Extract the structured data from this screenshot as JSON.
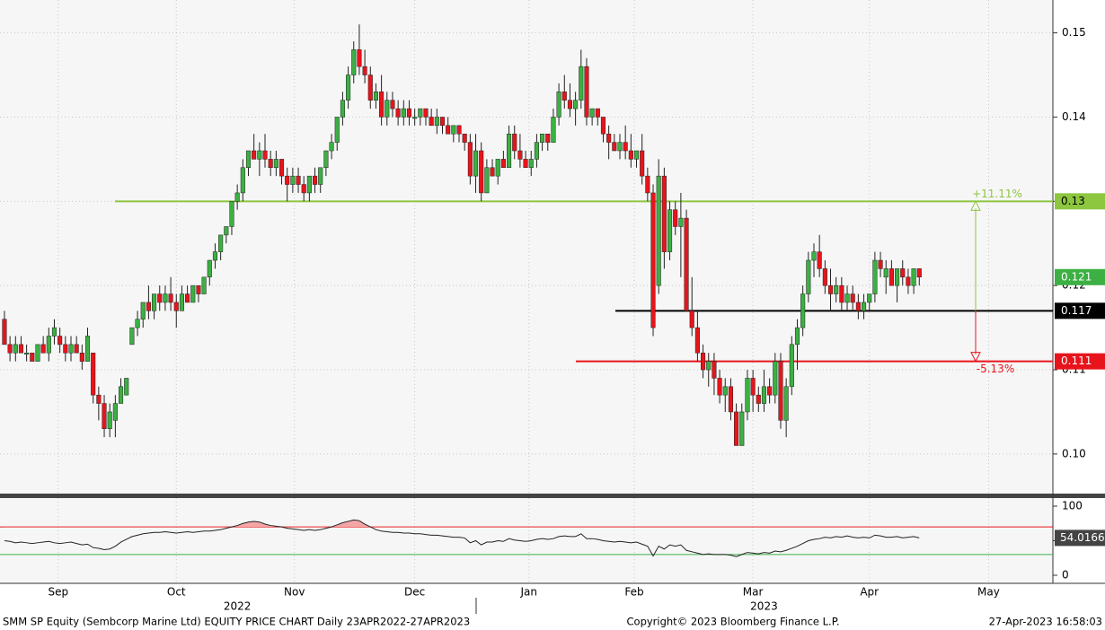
{
  "chart_data": {
    "type": "candlestick",
    "up_color": "#3cb043",
    "down_color": "#e8141b",
    "xlim": [
      -0.8,
      189.1
    ],
    "xticks": [
      {
        "value": 9.7,
        "label": "Sep"
      },
      {
        "value": 31,
        "label": "Oct"
      },
      {
        "value": 52.3,
        "label": "Nov"
      },
      {
        "value": 74,
        "label": "Dec"
      },
      {
        "value": 94.6,
        "label": "Jan"
      },
      {
        "value": 113.6,
        "label": "Feb"
      },
      {
        "value": 135,
        "label": "Mar"
      },
      {
        "value": 156,
        "label": "Apr"
      },
      {
        "value": 177.5,
        "label": "May"
      }
    ],
    "year_labels": [
      {
        "value": 42,
        "label": "2022"
      },
      {
        "value": 137,
        "label": "2023"
      }
    ],
    "ylim": [
      0.0953,
      0.1539
    ],
    "yticks": [
      {
        "value": 0.1,
        "label": "0.10"
      },
      0.11,
      0.12,
      0.13,
      0.14,
      0.15
    ],
    "grid": true,
    "ohlc": [
      [
        0.116,
        0.117,
        0.113,
        0.113
      ],
      [
        0.113,
        0.114,
        0.111,
        0.112
      ],
      [
        0.112,
        0.114,
        0.111,
        0.113
      ],
      [
        0.113,
        0.114,
        0.112,
        0.112
      ],
      [
        0.112,
        0.113,
        0.111,
        0.112
      ],
      [
        0.112,
        0.112,
        0.111,
        0.111
      ],
      [
        0.111,
        0.113,
        0.111,
        0.113
      ],
      [
        0.113,
        0.114,
        0.112,
        0.112
      ],
      [
        0.112,
        0.115,
        0.111,
        0.114
      ],
      [
        0.114,
        0.116,
        0.113,
        0.115
      ],
      [
        0.114,
        0.115,
        0.112,
        0.113
      ],
      [
        0.113,
        0.114,
        0.111,
        0.112
      ],
      [
        0.112,
        0.114,
        0.111,
        0.113
      ],
      [
        0.113,
        0.114,
        0.112,
        0.112
      ],
      [
        0.112,
        0.113,
        0.11,
        0.111
      ],
      [
        0.111,
        0.115,
        0.111,
        0.114
      ],
      [
        0.112,
        0.112,
        0.106,
        0.107
      ],
      [
        0.107,
        0.108,
        0.104,
        0.106
      ],
      [
        0.106,
        0.107,
        0.102,
        0.103
      ],
      [
        0.103,
        0.106,
        0.102,
        0.105
      ],
      [
        0.104,
        0.107,
        0.102,
        0.106
      ],
      [
        0.106,
        0.109,
        0.106,
        0.108
      ],
      [
        0.107,
        0.109,
        0.107,
        0.109
      ],
      [
        0.113,
        0.115,
        0.113,
        0.115
      ],
      [
        0.115,
        0.117,
        0.114,
        0.116
      ],
      [
        0.116,
        0.118,
        0.115,
        0.118
      ],
      [
        0.118,
        0.12,
        0.116,
        0.117
      ],
      [
        0.117,
        0.119,
        0.116,
        0.119
      ],
      [
        0.119,
        0.12,
        0.117,
        0.118
      ],
      [
        0.118,
        0.12,
        0.117,
        0.119
      ],
      [
        0.119,
        0.121,
        0.117,
        0.118
      ],
      [
        0.118,
        0.119,
        0.115,
        0.117
      ],
      [
        0.117,
        0.12,
        0.117,
        0.119
      ],
      [
        0.119,
        0.12,
        0.118,
        0.118
      ],
      [
        0.118,
        0.12,
        0.118,
        0.12
      ],
      [
        0.12,
        0.12,
        0.118,
        0.119
      ],
      [
        0.119,
        0.121,
        0.119,
        0.121
      ],
      [
        0.121,
        0.123,
        0.12,
        0.123
      ],
      [
        0.123,
        0.125,
        0.122,
        0.124
      ],
      [
        0.124,
        0.126,
        0.123,
        0.126
      ],
      [
        0.126,
        0.127,
        0.125,
        0.127
      ],
      [
        0.127,
        0.13,
        0.126,
        0.13
      ],
      [
        0.13,
        0.132,
        0.129,
        0.131
      ],
      [
        0.131,
        0.135,
        0.13,
        0.134
      ],
      [
        0.134,
        0.136,
        0.133,
        0.136
      ],
      [
        0.136,
        0.138,
        0.135,
        0.135
      ],
      [
        0.135,
        0.137,
        0.133,
        0.136
      ],
      [
        0.136,
        0.138,
        0.134,
        0.135
      ],
      [
        0.135,
        0.136,
        0.133,
        0.134
      ],
      [
        0.134,
        0.136,
        0.133,
        0.135
      ],
      [
        0.135,
        0.135,
        0.132,
        0.133
      ],
      [
        0.133,
        0.134,
        0.13,
        0.132
      ],
      [
        0.132,
        0.134,
        0.131,
        0.133
      ],
      [
        0.133,
        0.134,
        0.131,
        0.132
      ],
      [
        0.132,
        0.133,
        0.13,
        0.131
      ],
      [
        0.131,
        0.133,
        0.13,
        0.133
      ],
      [
        0.133,
        0.134,
        0.131,
        0.132
      ],
      [
        0.132,
        0.134,
        0.131,
        0.134
      ],
      [
        0.134,
        0.136,
        0.133,
        0.136
      ],
      [
        0.136,
        0.138,
        0.135,
        0.137
      ],
      [
        0.137,
        0.14,
        0.136,
        0.14
      ],
      [
        0.14,
        0.143,
        0.139,
        0.142
      ],
      [
        0.142,
        0.146,
        0.141,
        0.145
      ],
      [
        0.145,
        0.149,
        0.144,
        0.148
      ],
      [
        0.148,
        0.151,
        0.145,
        0.146
      ],
      [
        0.146,
        0.148,
        0.144,
        0.145
      ],
      [
        0.145,
        0.146,
        0.141,
        0.142
      ],
      [
        0.142,
        0.144,
        0.141,
        0.143
      ],
      [
        0.143,
        0.145,
        0.139,
        0.14
      ],
      [
        0.14,
        0.143,
        0.139,
        0.142
      ],
      [
        0.142,
        0.143,
        0.14,
        0.141
      ],
      [
        0.141,
        0.142,
        0.139,
        0.14
      ],
      [
        0.14,
        0.142,
        0.139,
        0.141
      ],
      [
        0.141,
        0.142,
        0.139,
        0.14
      ],
      [
        0.14,
        0.141,
        0.139,
        0.14
      ],
      [
        0.14,
        0.141,
        0.139,
        0.141
      ],
      [
        0.141,
        0.141,
        0.139,
        0.14
      ],
      [
        0.14,
        0.141,
        0.139,
        0.139
      ],
      [
        0.139,
        0.141,
        0.138,
        0.14
      ],
      [
        0.14,
        0.14,
        0.138,
        0.139
      ],
      [
        0.139,
        0.14,
        0.138,
        0.138
      ],
      [
        0.138,
        0.139,
        0.137,
        0.139
      ],
      [
        0.139,
        0.139,
        0.137,
        0.138
      ],
      [
        0.138,
        0.138,
        0.136,
        0.137
      ],
      [
        0.137,
        0.138,
        0.132,
        0.133
      ],
      [
        0.133,
        0.138,
        0.131,
        0.136
      ],
      [
        0.136,
        0.137,
        0.13,
        0.131
      ],
      [
        0.131,
        0.135,
        0.131,
        0.134
      ],
      [
        0.134,
        0.135,
        0.133,
        0.133
      ],
      [
        0.133,
        0.135,
        0.132,
        0.135
      ],
      [
        0.135,
        0.136,
        0.134,
        0.134
      ],
      [
        0.134,
        0.139,
        0.134,
        0.138
      ],
      [
        0.138,
        0.139,
        0.135,
        0.136
      ],
      [
        0.136,
        0.138,
        0.134,
        0.135
      ],
      [
        0.135,
        0.136,
        0.134,
        0.134
      ],
      [
        0.134,
        0.136,
        0.133,
        0.135
      ],
      [
        0.135,
        0.138,
        0.134,
        0.137
      ],
      [
        0.137,
        0.138,
        0.136,
        0.138
      ],
      [
        0.138,
        0.138,
        0.136,
        0.137
      ],
      [
        0.137,
        0.141,
        0.137,
        0.14
      ],
      [
        0.14,
        0.144,
        0.139,
        0.143
      ],
      [
        0.143,
        0.145,
        0.141,
        0.142
      ],
      [
        0.142,
        0.144,
        0.14,
        0.141
      ],
      [
        0.141,
        0.143,
        0.139,
        0.142
      ],
      [
        0.142,
        0.148,
        0.141,
        0.146
      ],
      [
        0.146,
        0.147,
        0.139,
        0.14
      ],
      [
        0.14,
        0.141,
        0.139,
        0.141
      ],
      [
        0.141,
        0.141,
        0.139,
        0.14
      ],
      [
        0.14,
        0.14,
        0.137,
        0.138
      ],
      [
        0.138,
        0.139,
        0.135,
        0.137
      ],
      [
        0.137,
        0.138,
        0.136,
        0.136
      ],
      [
        0.136,
        0.138,
        0.135,
        0.137
      ],
      [
        0.137,
        0.139,
        0.135,
        0.136
      ],
      [
        0.136,
        0.138,
        0.134,
        0.135
      ],
      [
        0.135,
        0.136,
        0.134,
        0.136
      ],
      [
        0.136,
        0.138,
        0.132,
        0.133
      ],
      [
        0.133,
        0.134,
        0.13,
        0.131
      ],
      [
        0.131,
        0.132,
        0.114,
        0.115
      ],
      [
        0.12,
        0.135,
        0.119,
        0.133
      ],
      [
        0.133,
        0.134,
        0.122,
        0.124
      ],
      [
        0.124,
        0.13,
        0.123,
        0.129
      ],
      [
        0.129,
        0.13,
        0.126,
        0.127
      ],
      [
        0.127,
        0.131,
        0.121,
        0.128
      ],
      [
        0.128,
        0.129,
        0.117,
        0.117
      ],
      [
        0.117,
        0.121,
        0.114,
        0.115
      ],
      [
        0.115,
        0.117,
        0.111,
        0.112
      ],
      [
        0.112,
        0.113,
        0.109,
        0.11
      ],
      [
        0.11,
        0.112,
        0.108,
        0.111
      ],
      [
        0.111,
        0.112,
        0.107,
        0.109
      ],
      [
        0.109,
        0.11,
        0.106,
        0.107
      ],
      [
        0.107,
        0.109,
        0.105,
        0.108
      ],
      [
        0.108,
        0.109,
        0.104,
        0.105
      ],
      [
        0.105,
        0.106,
        0.101,
        0.101
      ],
      [
        0.101,
        0.106,
        0.101,
        0.105
      ],
      [
        0.105,
        0.11,
        0.104,
        0.109
      ],
      [
        0.109,
        0.11,
        0.105,
        0.107
      ],
      [
        0.107,
        0.108,
        0.105,
        0.106
      ],
      [
        0.106,
        0.11,
        0.105,
        0.108
      ],
      [
        0.108,
        0.109,
        0.106,
        0.107
      ],
      [
        0.107,
        0.112,
        0.106,
        0.111
      ],
      [
        0.111,
        0.112,
        0.103,
        0.104
      ],
      [
        0.104,
        0.109,
        0.102,
        0.108
      ],
      [
        0.108,
        0.114,
        0.107,
        0.113
      ],
      [
        0.113,
        0.116,
        0.11,
        0.115
      ],
      [
        0.115,
        0.12,
        0.114,
        0.119
      ],
      [
        0.119,
        0.124,
        0.118,
        0.123
      ],
      [
        0.123,
        0.125,
        0.121,
        0.124
      ],
      [
        0.124,
        0.126,
        0.121,
        0.122
      ],
      [
        0.122,
        0.123,
        0.119,
        0.12
      ],
      [
        0.12,
        0.122,
        0.117,
        0.119
      ],
      [
        0.119,
        0.121,
        0.118,
        0.12
      ],
      [
        0.12,
        0.121,
        0.117,
        0.118
      ],
      [
        0.118,
        0.12,
        0.117,
        0.119
      ],
      [
        0.119,
        0.12,
        0.117,
        0.118
      ],
      [
        0.118,
        0.119,
        0.116,
        0.117
      ],
      [
        0.117,
        0.119,
        0.116,
        0.118
      ],
      [
        0.118,
        0.119,
        0.117,
        0.119
      ],
      [
        0.119,
        0.124,
        0.118,
        0.123
      ],
      [
        0.123,
        0.124,
        0.121,
        0.122
      ],
      [
        0.121,
        0.123,
        0.119,
        0.122
      ],
      [
        0.122,
        0.123,
        0.12,
        0.12
      ],
      [
        0.12,
        0.122,
        0.118,
        0.122
      ],
      [
        0.122,
        0.123,
        0.12,
        0.121
      ],
      [
        0.121,
        0.122,
        0.119,
        0.12
      ],
      [
        0.12,
        0.122,
        0.119,
        0.122
      ],
      [
        0.122,
        0.122,
        0.12,
        0.121
      ]
    ],
    "levels": [
      {
        "value": 0.13,
        "color": "#8dc63f"
      },
      {
        "value": 0.117,
        "color": "#000000"
      },
      {
        "value": 0.111,
        "color": "#e8141b"
      }
    ],
    "annotations": [
      {
        "text": "+11.11%",
        "color": "#8dc63f"
      },
      {
        "text": "-5.13%",
        "color": "#e8141b"
      }
    ],
    "rsi": [
      50,
      49,
      47,
      48,
      47,
      46,
      47,
      48,
      49,
      47,
      46,
      47,
      48,
      46,
      44,
      45,
      40,
      39,
      37,
      38,
      42,
      48,
      52,
      56,
      58,
      60,
      61,
      62,
      62,
      63,
      62,
      61,
      62,
      63,
      62,
      63,
      64,
      64,
      65,
      66,
      68,
      70,
      72,
      75,
      77,
      78,
      77,
      74,
      72,
      71,
      70,
      68,
      67,
      66,
      65,
      66,
      65,
      66,
      68,
      70,
      73,
      76,
      78,
      80,
      79,
      74,
      70,
      66,
      64,
      63,
      62,
      62,
      61,
      61,
      60,
      60,
      59,
      58,
      58,
      57,
      56,
      55,
      55,
      54,
      47,
      50,
      44,
      48,
      48,
      50,
      49,
      53,
      51,
      50,
      49,
      50,
      52,
      53,
      52,
      53,
      56,
      57,
      56,
      56,
      60,
      53,
      53,
      52,
      50,
      49,
      48,
      49,
      48,
      47,
      48,
      45,
      42,
      28,
      42,
      38,
      44,
      42,
      44,
      36,
      34,
      32,
      30,
      31,
      30,
      30,
      30,
      29,
      27,
      30,
      33,
      32,
      31,
      33,
      32,
      35,
      34,
      36,
      39,
      42,
      46,
      50,
      52,
      53,
      55,
      54,
      56,
      55,
      57,
      55,
      54,
      55,
      54,
      58,
      57,
      55,
      55,
      56,
      54,
      55,
      56,
      54.0166
    ],
    "rsi_ylim": [
      -11.7,
      111.7
    ],
    "rsi_yticks": [
      0,
      50,
      100
    ],
    "rsi_levels": [
      {
        "value": 70,
        "color": "#e8141b"
      },
      {
        "value": 30,
        "color": "#3cb043"
      }
    ],
    "footer_left": "SMM SP Equity (Sembcorp Marine Ltd) EQUITY PRICE CHART  Daily 23APR2022-27APR2023",
    "footer_center": "Copyright© 2023 Bloomberg Finance L.P.",
    "footer_right": "27-Apr-2023 16:58:03"
  }
}
